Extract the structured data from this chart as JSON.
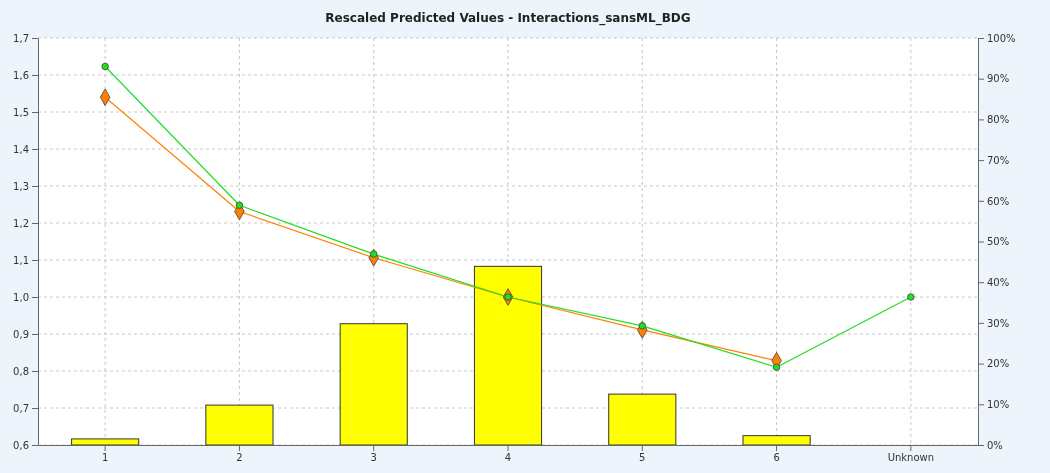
{
  "chart_data": {
    "type": "bar",
    "title": "Rescaled Predicted Values - Interactions_sansML_BDG",
    "categories": [
      "1",
      "2",
      "3",
      "4",
      "5",
      "6",
      "Unknown"
    ],
    "series": [
      {
        "axis": "y2",
        "color": "#ffff00",
        "values": [
          1.5,
          9.8,
          29.8,
          43.9,
          12.5,
          2.3,
          0
        ]
      },
      {
        "type": "line",
        "axis": "y",
        "color": "#ff8000",
        "marker": "diamond",
        "values": [
          1.54,
          1.231,
          1.106,
          1.0,
          0.911,
          0.828,
          null
        ]
      },
      {
        "type": "line",
        "axis": "y",
        "color": "#22dd22",
        "marker": "circle",
        "values": [
          1.623,
          1.248,
          1.116,
          1.0,
          0.922,
          0.81,
          1.0
        ]
      }
    ],
    "ylim": [
      0.6,
      1.7
    ],
    "yticks": [
      {
        "value": 0.6,
        "label": "0,6"
      },
      {
        "value": 0.7,
        "label": "0,7"
      },
      {
        "value": 0.8,
        "label": "0,8"
      },
      {
        "value": 0.9,
        "label": "0,9"
      },
      {
        "value": 1.0,
        "label": "1,0"
      },
      {
        "value": 1.1,
        "label": "1,1"
      },
      {
        "value": 1.2,
        "label": "1,2"
      },
      {
        "value": 1.3,
        "label": "1,3"
      },
      {
        "value": 1.4,
        "label": "1,4"
      },
      {
        "value": 1.5,
        "label": "1,5"
      },
      {
        "value": 1.6,
        "label": "1,6"
      },
      {
        "value": 1.7,
        "label": "1,7"
      }
    ],
    "y2lim": [
      0,
      100
    ],
    "y2ticks": [
      {
        "value": 0,
        "label": "0%"
      },
      {
        "value": 10,
        "label": "10%"
      },
      {
        "value": 20,
        "label": "20%"
      },
      {
        "value": 30,
        "label": "30%"
      },
      {
        "value": 40,
        "label": "40%"
      },
      {
        "value": 50,
        "label": "50%"
      },
      {
        "value": 60,
        "label": "60%"
      },
      {
        "value": 70,
        "label": "70%"
      },
      {
        "value": 80,
        "label": "80%"
      },
      {
        "value": 90,
        "label": "90%"
      },
      {
        "value": 100,
        "label": "100%"
      }
    ],
    "grid": true
  }
}
